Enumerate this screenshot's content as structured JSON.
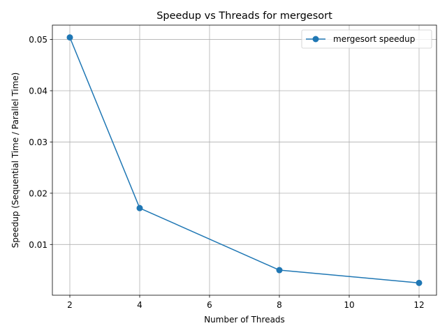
{
  "chart_data": {
    "type": "line",
    "title": "Speedup vs Threads for mergesort",
    "xlabel": "Number of Threads",
    "ylabel": "Speedup (Sequential Time / Parallel Time)",
    "xlim": [
      1.5,
      12.5
    ],
    "ylim": [
      0.0001,
      0.0528
    ],
    "xticks": [
      2,
      4,
      6,
      8,
      10,
      12
    ],
    "yticks": [
      0.01,
      0.02,
      0.03,
      0.04,
      0.05
    ],
    "xtick_labels": [
      "2",
      "4",
      "6",
      "8",
      "10",
      "12"
    ],
    "ytick_labels": [
      "0.01",
      "0.02",
      "0.03",
      "0.04",
      "0.05"
    ],
    "grid": true,
    "legend_position": "top-right",
    "series": [
      {
        "name": "mergesort speedup",
        "color": "#1f77b4",
        "marker": "circle",
        "x": [
          2,
          4,
          8,
          12
        ],
        "y": [
          0.0504,
          0.0171,
          0.005,
          0.0025
        ]
      }
    ]
  }
}
